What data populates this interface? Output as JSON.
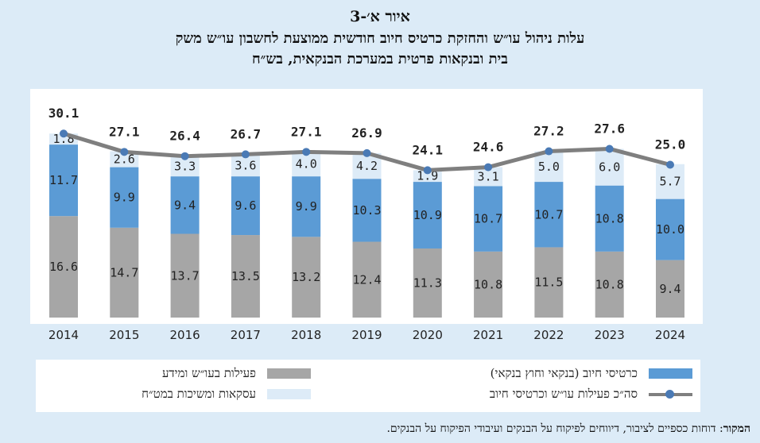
{
  "title": {
    "line1": "איור א׳-3",
    "line2": "עלות ניהול עו״ש והחזקת כרטיס חיוב חודשית ממוצעת לחשבון עו״ש משק",
    "line3": "בית ובנקאות פרטית במערכת הבנקאית, בש״ח"
  },
  "legend": {
    "activity": "פעילות בעו״ש ומידע",
    "cards": "כרטיסי חיוב (בנקאי וחוץ בנקאי)",
    "transactions": "עסקאות ומשיכות במט״ח",
    "total": "סה״כ פעילות עו״ש וכרטיסי חיוב"
  },
  "source": {
    "label": "המקור",
    "text": ": דוחות כספיים לציבור, דיווחים לפיקוח על הבנקים ועיבודי הפיקוח על הבנקים."
  },
  "colors": {
    "activity": "#a6a6a6",
    "cards": "#5b9bd5",
    "transactions": "#ddebf7",
    "total_line": "#7f7f7f",
    "total_marker": "#4a7ab5",
    "frame": "#dcebf7"
  },
  "chart_data": {
    "type": "bar",
    "stacked": true,
    "categories": [
      "2014",
      "2015",
      "2016",
      "2017",
      "2018",
      "2019",
      "2020",
      "2021",
      "2022",
      "2023",
      "2024"
    ],
    "series": [
      {
        "name": "פעילות בעו״ש ומידע",
        "values": [
          16.6,
          14.7,
          13.7,
          13.5,
          13.2,
          12.4,
          11.3,
          10.8,
          11.5,
          10.8,
          9.4
        ]
      },
      {
        "name": "כרטיסי חיוב (בנקאי וחוץ בנקאי)",
        "values": [
          11.7,
          9.9,
          9.4,
          9.6,
          9.9,
          10.3,
          10.9,
          10.7,
          10.7,
          10.8,
          10.0
        ]
      },
      {
        "name": "עסקאות ומשיכות במט״ח",
        "values": [
          1.8,
          2.6,
          3.3,
          3.6,
          4.0,
          4.2,
          1.9,
          3.1,
          5.0,
          6.0,
          5.7
        ]
      }
    ],
    "line_series": {
      "name": "סה״כ פעילות עו״ש וכרטיסי חיוב",
      "values": [
        30.1,
        27.1,
        26.4,
        26.7,
        27.1,
        26.9,
        24.1,
        24.6,
        27.2,
        27.6,
        25.0
      ]
    },
    "ylim": [
      0,
      32
    ],
    "grid": false,
    "legend_position": "bottom"
  }
}
